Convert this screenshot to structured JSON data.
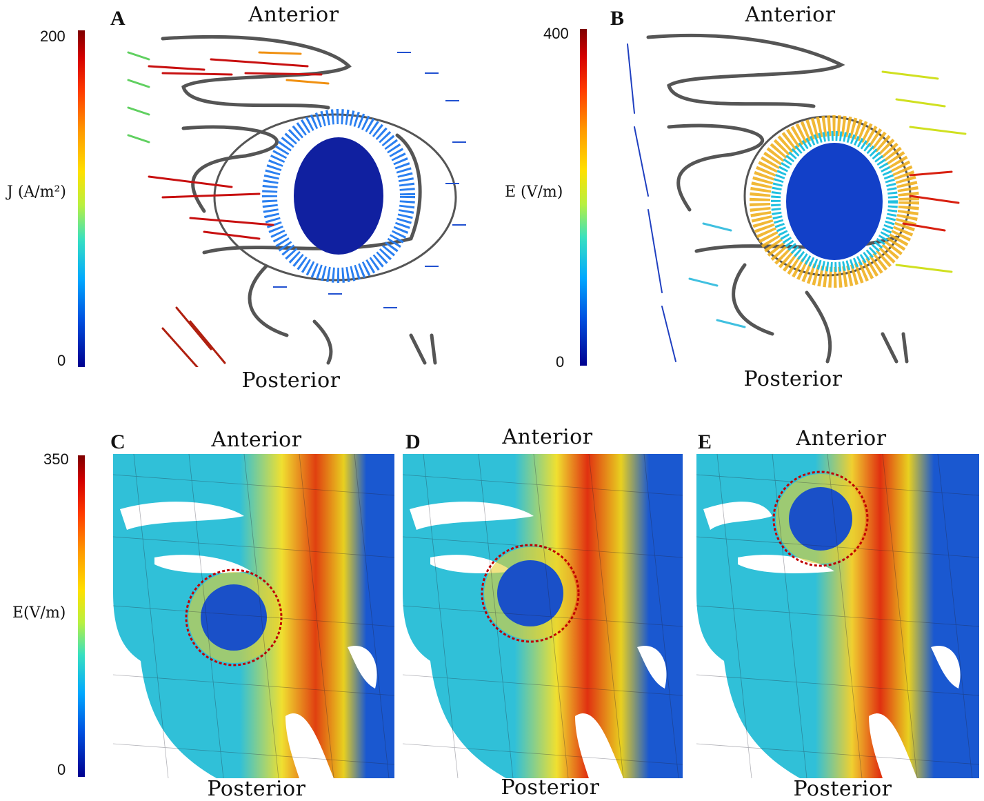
{
  "panels": [
    {
      "letter": "A",
      "top": "Anterior",
      "bottom": "Posterior"
    },
    {
      "letter": "B",
      "top": "Anterior",
      "bottom": "Posterior"
    },
    {
      "letter": "C",
      "top": "Anterior",
      "bottom": "Posterior"
    },
    {
      "letter": "D",
      "top": "Anterior",
      "bottom": "Posterior"
    },
    {
      "letter": "E",
      "top": "Anterior",
      "bottom": "Posterior"
    }
  ],
  "colorbars": {
    "current_density": {
      "label": "J (A/m²)",
      "max": "200",
      "min": "0"
    },
    "efield_vectors": {
      "label": "E (V/m)",
      "max": "400",
      "min": "0"
    },
    "efield_mesh": {
      "label": "E(V/m)",
      "max": "350",
      "min": "0"
    }
  },
  "colors": {
    "high": "#c00000",
    "mid": "#f5e000",
    "low": "#00008f",
    "lesion_outline": "#c00000"
  }
}
